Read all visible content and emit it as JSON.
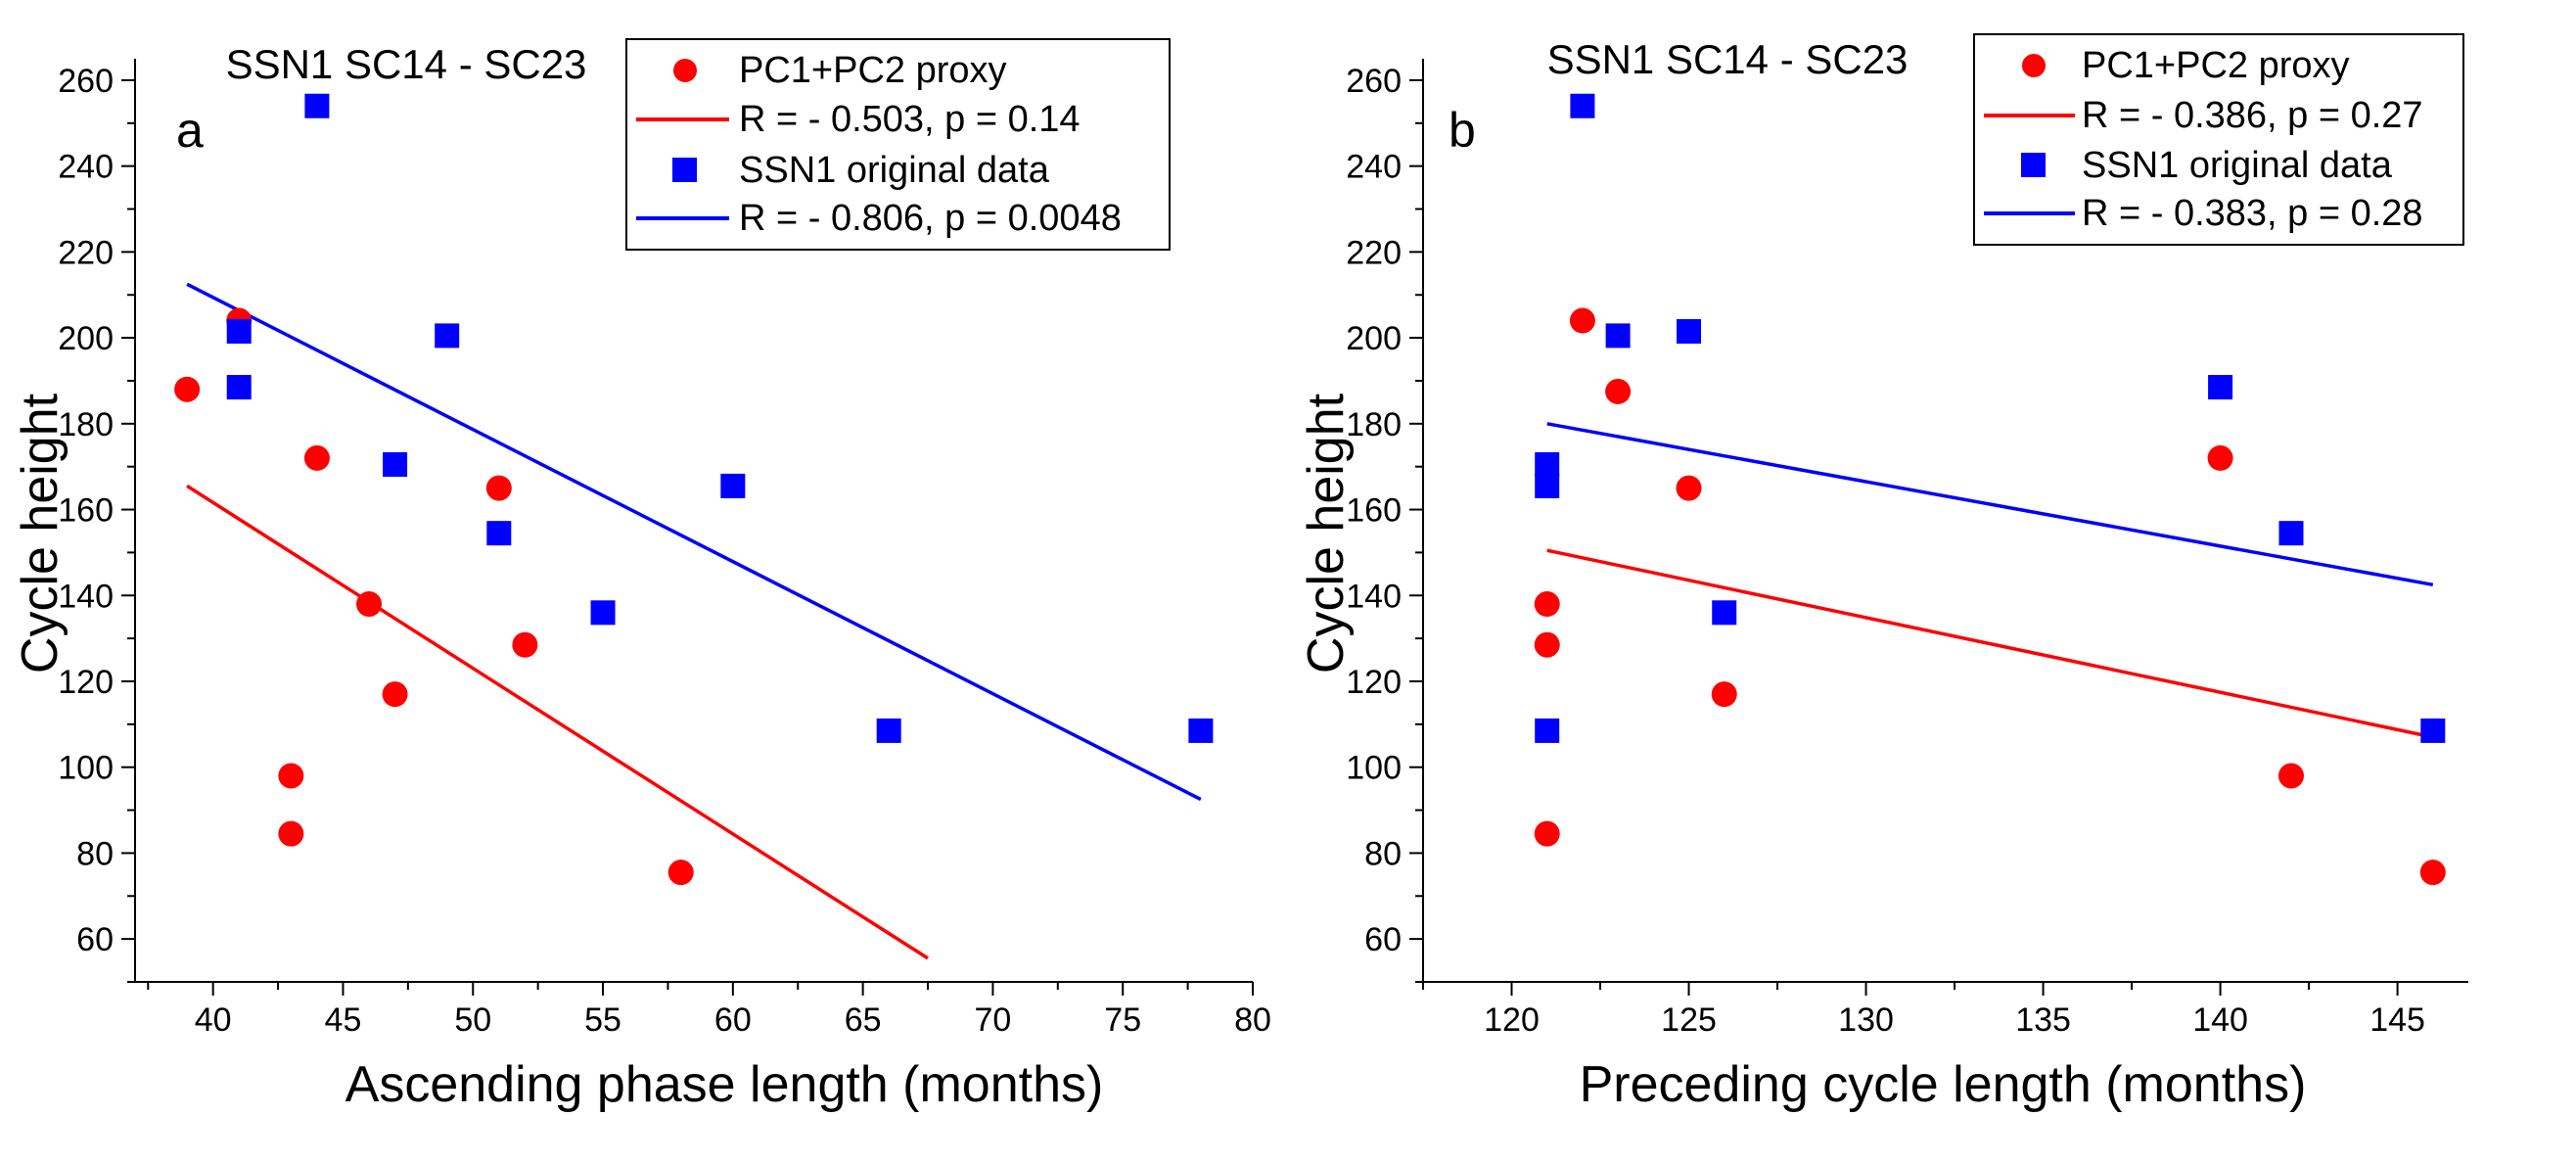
{
  "colors": {
    "proxy": "#ff0000",
    "ssn": "#0000ff",
    "axis": "#000000",
    "legend_border": "#000000"
  },
  "chart_data": [
    {
      "id": "a",
      "type": "scatter",
      "panel_label": "a",
      "title": "SSN1 SC14 - SC23",
      "xlabel": "Ascending phase length (months)",
      "ylabel": "Cycle height",
      "xlim": [
        37,
        80
      ],
      "ylim": [
        50,
        265
      ],
      "xticks": [
        40,
        45,
        50,
        55,
        60,
        65,
        70,
        75,
        80
      ],
      "yticks": [
        60,
        80,
        100,
        120,
        140,
        160,
        180,
        200,
        220,
        240,
        260
      ],
      "grid": false,
      "legend_position": "top-right",
      "legend": [
        {
          "label": "PC1+PC2 proxy",
          "kind": "circle",
          "color": "#ff0000"
        },
        {
          "label": "R = - 0.503, p = 0.14",
          "kind": "line",
          "color": "#ff0000"
        },
        {
          "label": "SSN1 original data",
          "kind": "square",
          "color": "#0000ff"
        },
        {
          "label": "R = - 0.806, p = 0.0048",
          "kind": "line",
          "color": "#0000ff"
        }
      ],
      "series": [
        {
          "name": "PC1+PC2 proxy",
          "marker": "circle",
          "color": "#ff0000",
          "points": [
            [
              39,
              188
            ],
            [
              41,
              204
            ],
            [
              43,
              98
            ],
            [
              43,
              84.5
            ],
            [
              44,
              172
            ],
            [
              46,
              138
            ],
            [
              47,
              117
            ],
            [
              51,
              165
            ],
            [
              52,
              128.5
            ],
            [
              58,
              75.5
            ]
          ]
        },
        {
          "name": "SSN1 original data",
          "marker": "square",
          "color": "#0000ff",
          "points": [
            [
              41,
              201.5
            ],
            [
              41,
              188.5
            ],
            [
              44,
              254
            ],
            [
              47,
              170.5
            ],
            [
              49,
              200.5
            ],
            [
              51,
              154.5
            ],
            [
              55,
              136
            ],
            [
              60,
              165.5
            ],
            [
              66,
              108.5
            ],
            [
              78,
              108.5
            ]
          ]
        }
      ],
      "fits": [
        {
          "name": "R = - 0.503, p = 0.14",
          "color": "#ff0000",
          "x": [
            39,
            67.5
          ],
          "y": [
            165.5,
            55.5
          ]
        },
        {
          "name": "R = - 0.806, p = 0.0048",
          "color": "#0000ff",
          "x": [
            39,
            78
          ],
          "y": [
            212.5,
            92.5
          ]
        }
      ]
    },
    {
      "id": "b",
      "type": "scatter",
      "panel_label": "b",
      "title": "SSN1 SC14 - SC23",
      "xlabel": "Preceding cycle length (months)",
      "ylabel": "Cycle height",
      "xlim": [
        117.5,
        147
      ],
      "ylim": [
        50,
        265
      ],
      "xticks": [
        120,
        125,
        130,
        135,
        140,
        145
      ],
      "yticks": [
        60,
        80,
        100,
        120,
        140,
        160,
        180,
        200,
        220,
        240,
        260
      ],
      "grid": false,
      "legend_position": "top-right",
      "legend": [
        {
          "label": "PC1+PC2 proxy",
          "kind": "circle",
          "color": "#ff0000"
        },
        {
          "label": "R = - 0.386, p = 0.27",
          "kind": "line",
          "color": "#ff0000"
        },
        {
          "label": "SSN1 original data",
          "kind": "square",
          "color": "#0000ff"
        },
        {
          "label": "R = - 0.383, p = 0.28",
          "kind": "line",
          "color": "#0000ff"
        }
      ],
      "series": [
        {
          "name": "PC1+PC2 proxy",
          "marker": "circle",
          "color": "#ff0000",
          "points": [
            [
              121,
              138
            ],
            [
              121,
              128.5
            ],
            [
              121,
              84.5
            ],
            [
              122,
              204
            ],
            [
              123,
              187.5
            ],
            [
              125,
              165
            ],
            [
              126,
              117
            ],
            [
              140,
              172
            ],
            [
              142,
              98
            ],
            [
              146,
              75.5
            ]
          ]
        },
        {
          "name": "SSN1 original data",
          "marker": "square",
          "color": "#0000ff",
          "points": [
            [
              121,
              170.5
            ],
            [
              121,
              165.5
            ],
            [
              121,
              108.5
            ],
            [
              122,
              254
            ],
            [
              123,
              200.5
            ],
            [
              125,
              201.5
            ],
            [
              126,
              136
            ],
            [
              140,
              188.5
            ],
            [
              142,
              154.5
            ],
            [
              146,
              108.5
            ]
          ]
        }
      ],
      "fits": [
        {
          "name": "R = - 0.386, p = 0.27",
          "color": "#ff0000",
          "x": [
            121,
            146
          ],
          "y": [
            150.5,
            107
          ]
        },
        {
          "name": "R = - 0.383, p = 0.28",
          "color": "#0000ff",
          "x": [
            121,
            146
          ],
          "y": [
            180,
            142.5
          ]
        }
      ]
    }
  ]
}
